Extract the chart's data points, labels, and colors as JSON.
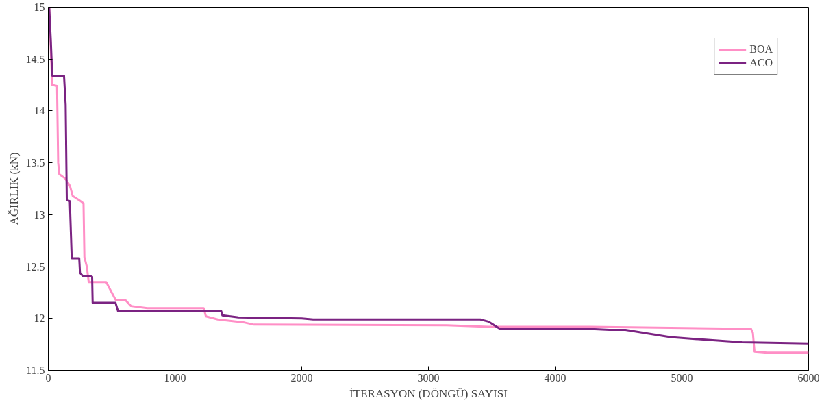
{
  "chart_data": {
    "type": "line",
    "xlabel": "İTERASYON (DÖNGÜ) SAYISI",
    "ylabel": "AĞIRLIK (kN)",
    "xlim": [
      0,
      6000
    ],
    "ylim": [
      11.5,
      15
    ],
    "xticks": [
      0,
      1000,
      2000,
      3000,
      4000,
      5000,
      6000
    ],
    "yticks": [
      11.5,
      12,
      12.5,
      13,
      13.5,
      14,
      14.5,
      15
    ],
    "grid": false,
    "legend": "top right",
    "line_style": "solid",
    "marker": "none",
    "series": [
      {
        "name": "BOA",
        "color": "#ff8fc6",
        "x": [
          7,
          31,
          69,
          78,
          87,
          133,
          170,
          193,
          244,
          278,
          285,
          304,
          319,
          457,
          531,
          606,
          652,
          781,
          1226,
          1244,
          1337,
          1550,
          1624,
          3145,
          3473,
          4273,
          5545,
          5560,
          5573,
          5673,
          6000
        ],
        "values": [
          15.0,
          14.25,
          14.24,
          13.5,
          13.39,
          13.35,
          13.28,
          13.18,
          13.14,
          13.11,
          12.59,
          12.5,
          12.35,
          12.35,
          12.18,
          12.18,
          12.12,
          12.1,
          12.1,
          12.02,
          11.99,
          11.96,
          11.94,
          11.935,
          11.92,
          11.92,
          11.9,
          11.86,
          11.68,
          11.67,
          11.67
        ]
      },
      {
        "name": "ACO",
        "color": "#7b2382",
        "x": [
          7,
          19,
          31,
          124,
          137,
          146,
          170,
          185,
          244,
          250,
          272,
          328,
          346,
          350,
          531,
          550,
          1365,
          1374,
          1500,
          2000,
          2090,
          3409,
          3473,
          3564,
          4255,
          4428,
          4555,
          4909,
          5473,
          6000
        ],
        "values": [
          15.0,
          14.7,
          14.34,
          14.34,
          14.06,
          13.14,
          13.13,
          12.58,
          12.58,
          12.44,
          12.41,
          12.41,
          12.4,
          12.15,
          12.15,
          12.07,
          12.07,
          12.03,
          12.01,
          12.0,
          11.99,
          11.99,
          11.97,
          11.9,
          11.9,
          11.89,
          11.89,
          11.82,
          11.77,
          11.76
        ]
      }
    ]
  }
}
